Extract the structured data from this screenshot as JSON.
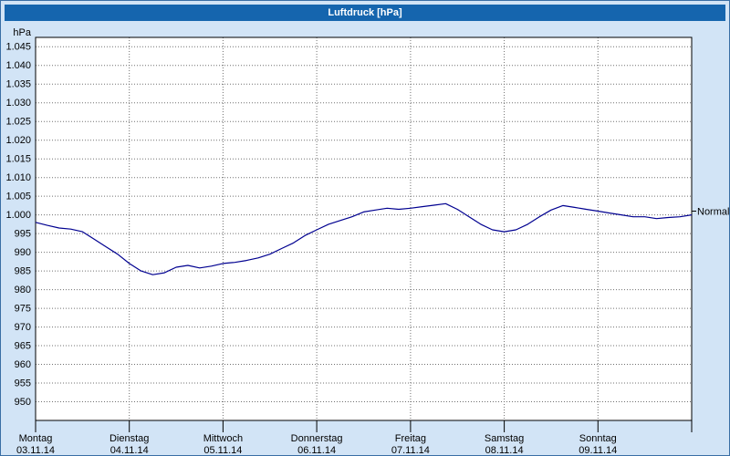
{
  "window": {
    "title": "Luftdruck [hPa]"
  },
  "colors": {
    "window_bg": "#d2e4f6",
    "titlebar_bg": "#1565ae",
    "titlebar_text": "#ffffff",
    "plot_bg": "#ffffff",
    "plot_border": "#000000",
    "grid": "#707070",
    "line": "#000090",
    "label_text": "#000000"
  },
  "y_axis": {
    "unit_label": "hPa",
    "tick_values": [
      1045,
      1040,
      1035,
      1030,
      1025,
      1020,
      1015,
      1010,
      1005,
      1000,
      995,
      990,
      985,
      980,
      975,
      970,
      965,
      960,
      955,
      950
    ],
    "tick_labels": [
      "1.045",
      "1.040",
      "1.035",
      "1.030",
      "1.025",
      "1.020",
      "1.015",
      "1.010",
      "1.005",
      "1.000",
      "995",
      "990",
      "985",
      "980",
      "975",
      "970",
      "965",
      "960",
      "955",
      "950"
    ]
  },
  "x_axis": {
    "days": [
      {
        "name": "Montag",
        "date": "03.11.14"
      },
      {
        "name": "Dienstag",
        "date": "04.11.14"
      },
      {
        "name": "Mittwoch",
        "date": "05.11.14"
      },
      {
        "name": "Donnerstag",
        "date": "06.11.14"
      },
      {
        "name": "Freitag",
        "date": "07.11.14"
      },
      {
        "name": "Samstag",
        "date": "08.11.14"
      },
      {
        "name": "Sonntag",
        "date": "09.11.14"
      }
    ]
  },
  "chart_data": {
    "type": "line",
    "title": "Luftdruck [hPa]",
    "ylabel": "hPa",
    "ylim": [
      945,
      1047.5
    ],
    "y_gridline_step": 5,
    "x_days": [
      "03.11.14",
      "04.11.14",
      "05.11.14",
      "06.11.14",
      "07.11.14",
      "08.11.14",
      "09.11.14"
    ],
    "interval_hours": 3,
    "normal_line": {
      "label": "Normal",
      "value": 1001
    },
    "series": [
      {
        "name": "Luftdruck",
        "unit": "hPa",
        "color": "#000090",
        "values": [
          998,
          997.2,
          996.5,
          996.2,
          995.5,
          993.5,
          991.5,
          989.5,
          987,
          985,
          984,
          984.5,
          986,
          986.5,
          985.8,
          986.3,
          987,
          987.3,
          987.8,
          988.5,
          989.5,
          991,
          992.5,
          994.5,
          996,
          997.5,
          998.5,
          999.5,
          1000.8,
          1001.3,
          1001.8,
          1001.5,
          1001.8,
          1002.2,
          1002.6,
          1003,
          1001.5,
          999.5,
          997.5,
          996,
          995.5,
          996,
          997.5,
          999.5,
          1001.3,
          1002.5,
          1002,
          1001.5,
          1001,
          1000.5,
          1000,
          999.5,
          999.5,
          999,
          999.3,
          999.5,
          1000
        ]
      }
    ]
  }
}
